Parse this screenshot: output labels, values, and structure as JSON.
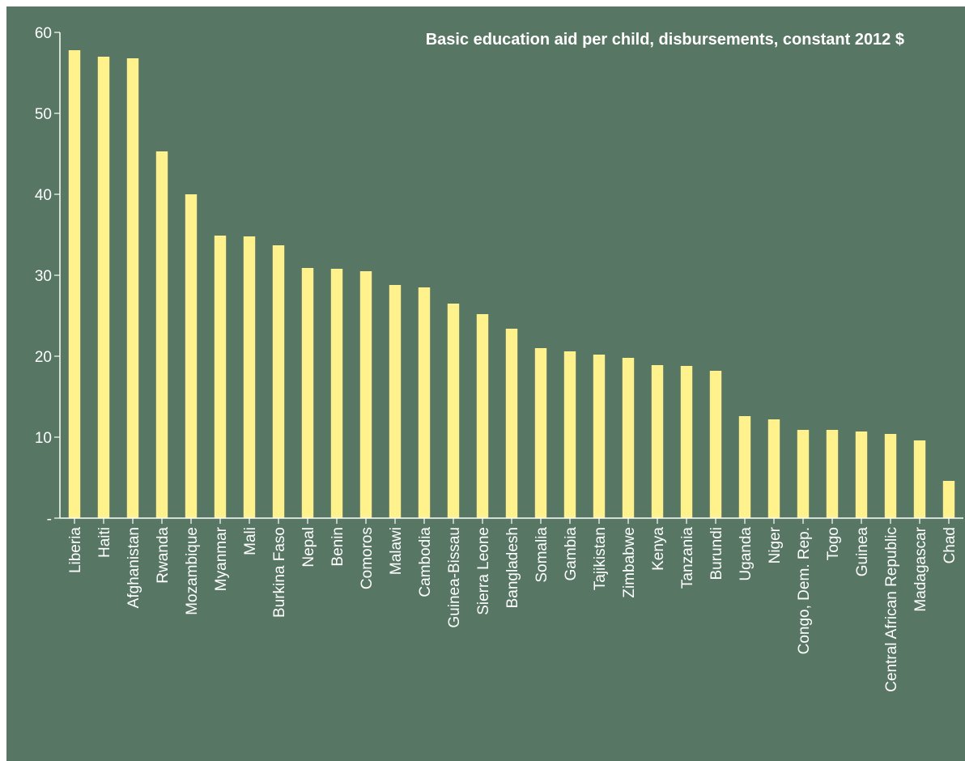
{
  "colors": {
    "background": "#577764",
    "bar": "#FFF28C",
    "text": "#FFFFFF",
    "axis": "#FFFFFF"
  },
  "chart_data": {
    "type": "bar",
    "title": "Basic education aid per child, disbursements, constant 2012 $",
    "xlabel": "",
    "ylabel": "",
    "ylim": [
      0,
      60
    ],
    "yticks": [
      {
        "value": 0,
        "label": "-"
      },
      {
        "value": 10,
        "label": "10"
      },
      {
        "value": 20,
        "label": "20"
      },
      {
        "value": 30,
        "label": "30"
      },
      {
        "value": 40,
        "label": "40"
      },
      {
        "value": 50,
        "label": "50"
      },
      {
        "value": 60,
        "label": "60"
      }
    ],
    "grid": false,
    "legend": "none",
    "categories": [
      "Liberia",
      "Haiti",
      "Afghanistan",
      "Rwanda",
      "Mozambique",
      "Myanmar",
      "Mali",
      "Burkina Faso",
      "Nepal",
      "Benin",
      "Comoros",
      "Malawi",
      "Cambodia",
      "Guinea-Bissau",
      "Sierra Leone",
      "Bangladesh",
      "Somalia",
      "Gambia",
      "Tajikistan",
      "Zimbabwe",
      "Kenya",
      "Tanzania",
      "Burundi",
      "Uganda",
      "Niger",
      "Congo, Dem. Rep.",
      "Togo",
      "Guinea",
      "Central African Republic",
      "Madagascar",
      "Chad"
    ],
    "values": [
      57.8,
      57.0,
      56.8,
      45.3,
      40.0,
      34.9,
      34.8,
      33.7,
      30.9,
      30.8,
      30.5,
      28.8,
      28.5,
      26.5,
      25.2,
      23.4,
      21.0,
      20.6,
      20.2,
      19.8,
      18.9,
      18.8,
      18.2,
      12.6,
      12.2,
      10.9,
      10.9,
      10.7,
      10.4,
      9.6,
      4.6
    ]
  }
}
